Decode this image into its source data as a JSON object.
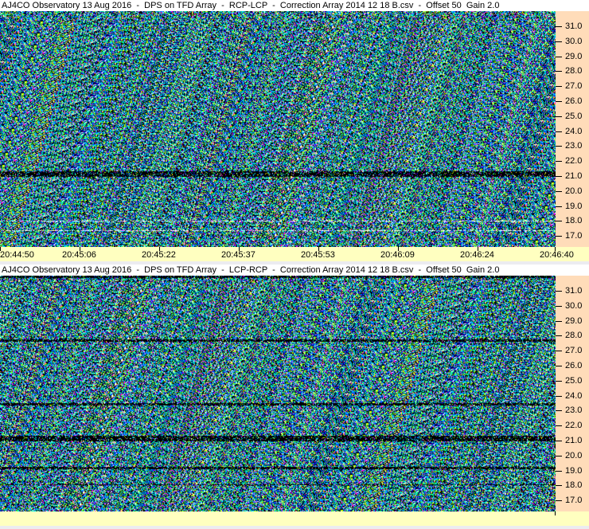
{
  "panels": [
    {
      "title": "AJ4CO Observatory 13 Aug 2016  -  DPS on TFD Array  -  RCP-LCP  -  Correction Array 2014 12 18 B.csv  -  Offset 50  Gain 2.0",
      "y_ticks": [
        "31.0",
        "30.0",
        "29.0",
        "28.0",
        "27.0",
        "26.0",
        "25.0",
        "24.0",
        "23.0",
        "22.0",
        "21.0",
        "20.0",
        "19.0",
        "18.0",
        "17.0"
      ],
      "x_ticks": [
        "20:44:50",
        "20:45:06",
        "20:45:22",
        "20:45:37",
        "20:45:53",
        "20:46:09",
        "20:46:24",
        "20:46:40"
      ]
    },
    {
      "title": "AJ4CO Observatory 13 Aug 2016  -  DPS on TFD Array  -  LCP-RCP  -  Correction Array 2014 12 18 B.csv  -  Offset 50  Gain 2.0",
      "y_ticks": [
        "31.0",
        "30.0",
        "29.0",
        "28.0",
        "27.0",
        "26.0",
        "25.0",
        "24.0",
        "23.0",
        "22.0",
        "21.0",
        "20.0",
        "19.0",
        "18.0",
        "17.0"
      ],
      "x_ticks": []
    }
  ],
  "colors": {
    "axis_bg": "#ffdcb9",
    "time_bg": "#ffffc0",
    "title_bg": "#ffffff"
  }
}
